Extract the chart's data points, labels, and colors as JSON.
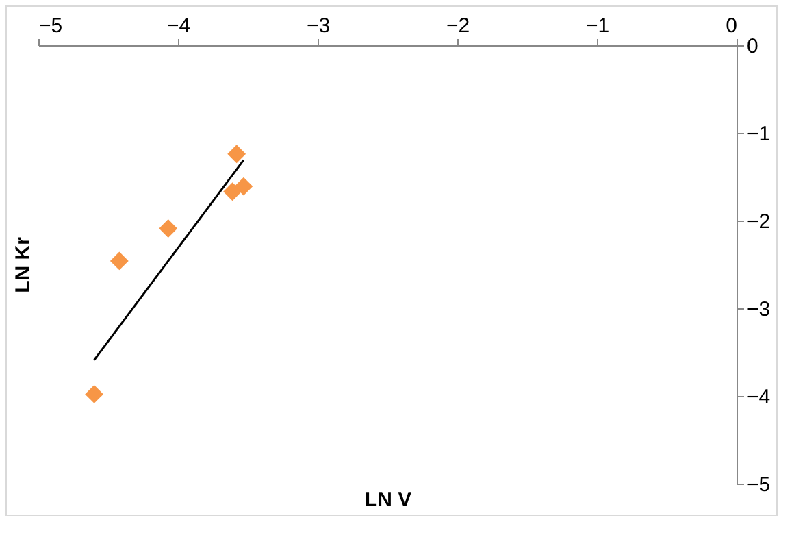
{
  "chart_data": {
    "type": "scatter",
    "xlabel": "LN V",
    "ylabel": "LN Kr",
    "xlim": [
      -5,
      0
    ],
    "xticks": [
      -5,
      -4,
      -3,
      -2,
      -1,
      0
    ],
    "ylim": [
      -5,
      0
    ],
    "yticks": [
      -5,
      -4,
      -3,
      -2,
      -1,
      0
    ],
    "grid": false,
    "series": [
      {
        "marker": "diamond",
        "color": "#f79646",
        "x": [
          -4.6,
          -4.42,
          -4.07,
          -3.58,
          -3.61,
          -3.53
        ],
        "values": [
          -3.98,
          -2.46,
          -2.09,
          -1.24,
          -1.67,
          -1.61
        ]
      },
      {
        "type": "line",
        "marker": "none",
        "color": "#000000",
        "x": [
          -4.6,
          -3.53
        ],
        "values": [
          -3.59,
          -1.31
        ]
      }
    ]
  }
}
